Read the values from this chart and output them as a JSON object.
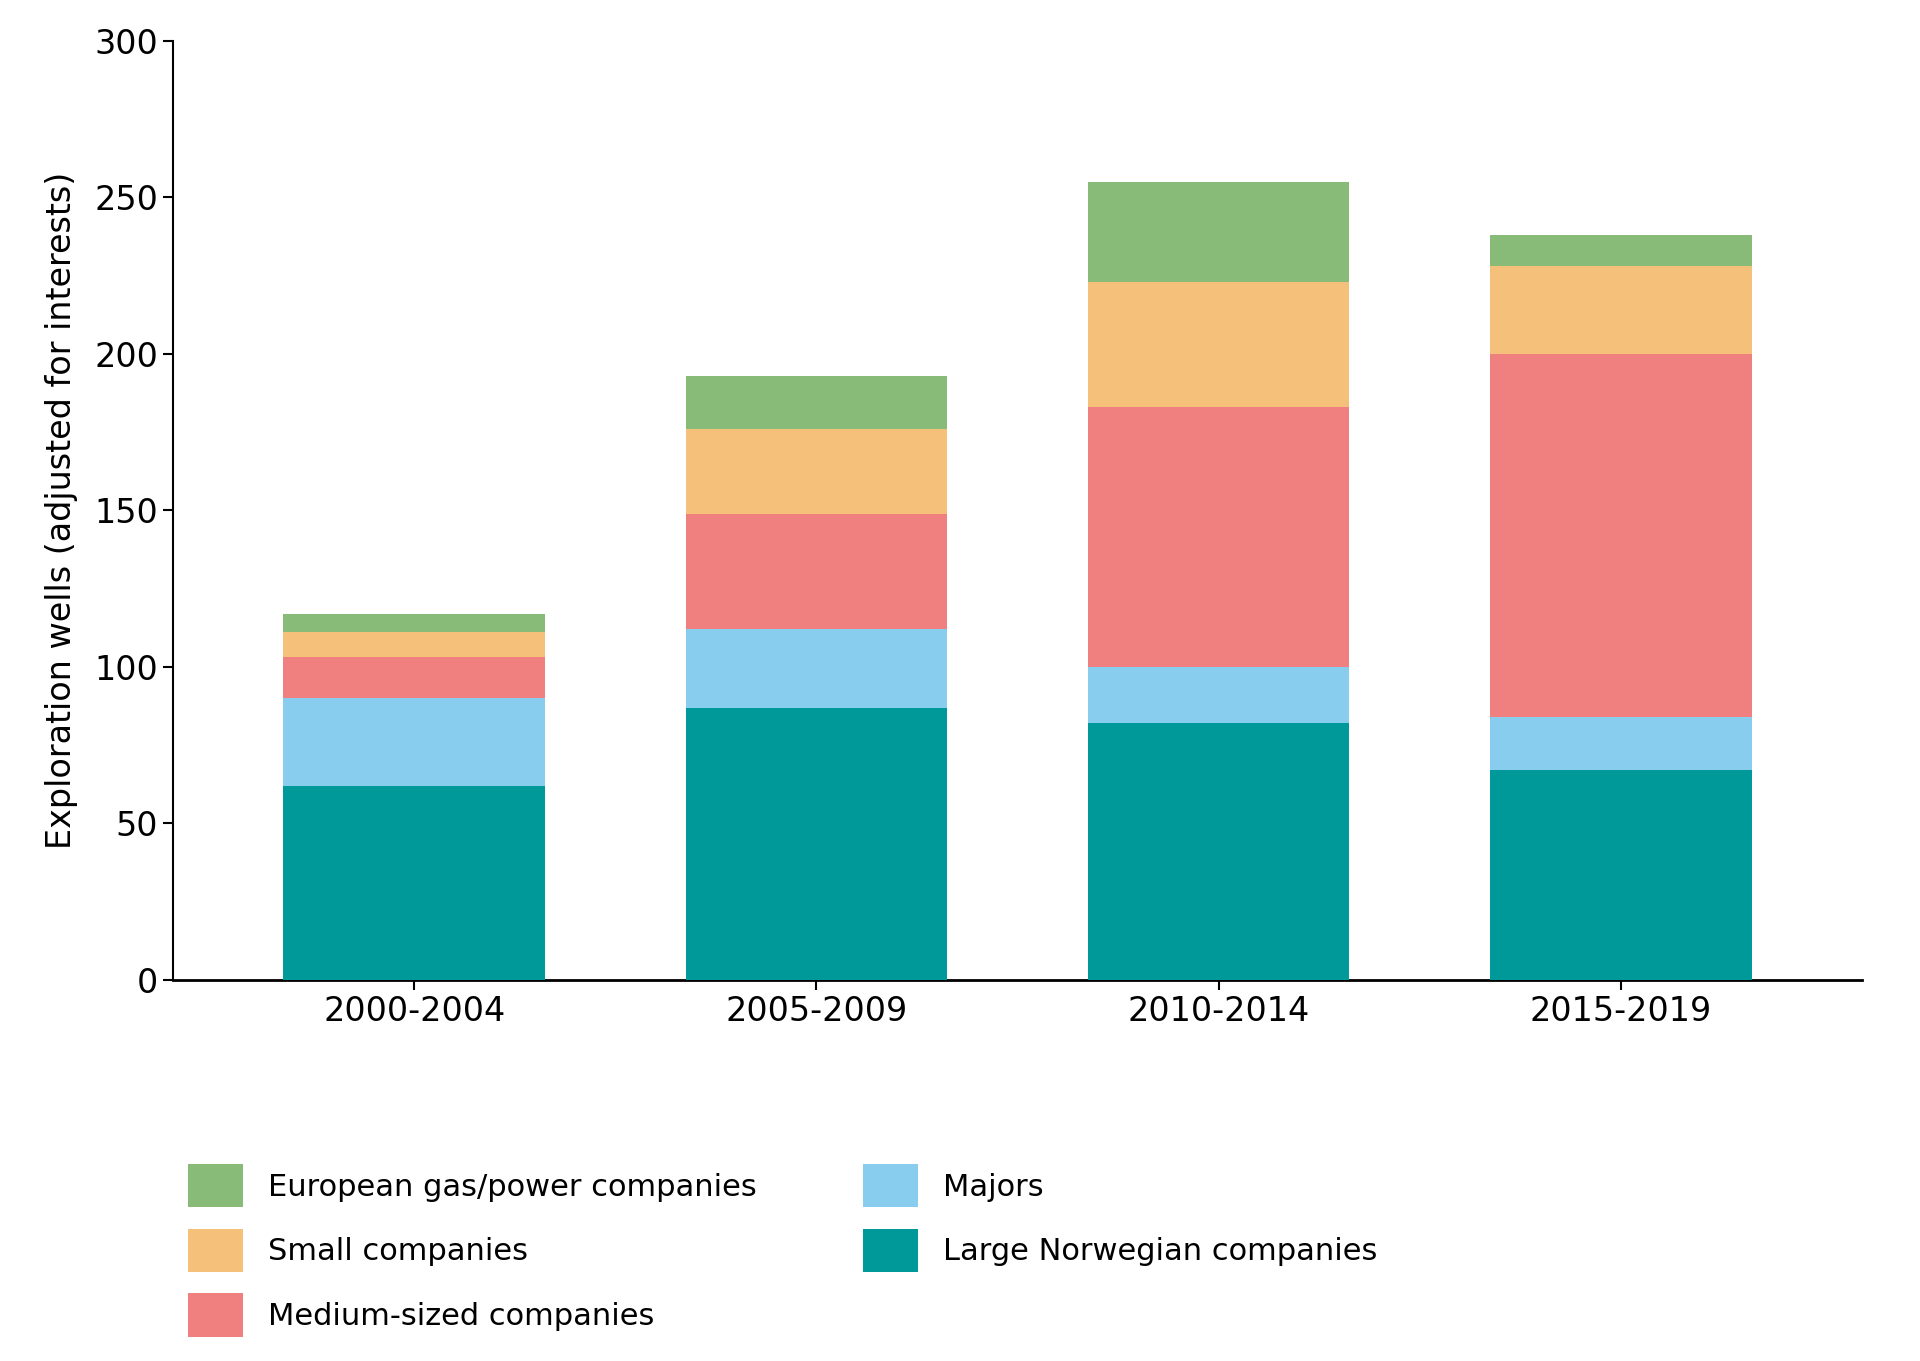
{
  "categories": [
    "2000-2004",
    "2005-2009",
    "2010-2014",
    "2015-2019"
  ],
  "series": {
    "Large Norwegian companies": [
      62,
      87,
      82,
      67
    ],
    "Majors": [
      28,
      25,
      18,
      17
    ],
    "Medium-sized companies": [
      13,
      37,
      83,
      116
    ],
    "Small companies": [
      8,
      27,
      40,
      28
    ],
    "European gas/power companies": [
      6,
      17,
      32,
      10
    ]
  },
  "colors": {
    "Large Norwegian companies": "#009999",
    "Majors": "#88CCEE",
    "Medium-sized companies": "#F08080",
    "Small companies": "#F5C07A",
    "European gas/power companies": "#88BB77"
  },
  "ylabel": "Exploration wells (adjusted for interests)",
  "ylim": [
    0,
    300
  ],
  "yticks": [
    0,
    50,
    100,
    150,
    200,
    250,
    300
  ],
  "bar_width": 0.65,
  "stack_order": [
    "Large Norwegian companies",
    "Majors",
    "Medium-sized companies",
    "Small companies",
    "European gas/power companies"
  ],
  "legend_left": [
    "European gas/power companies",
    "Small companies",
    "Medium-sized companies"
  ],
  "legend_right": [
    "Majors",
    "Large Norwegian companies"
  ],
  "background_color": "#ffffff",
  "figsize": [
    19.2,
    13.61
  ],
  "dpi": 100,
  "ylabel_fontsize": 24,
  "tick_fontsize": 24,
  "legend_fontsize": 22
}
